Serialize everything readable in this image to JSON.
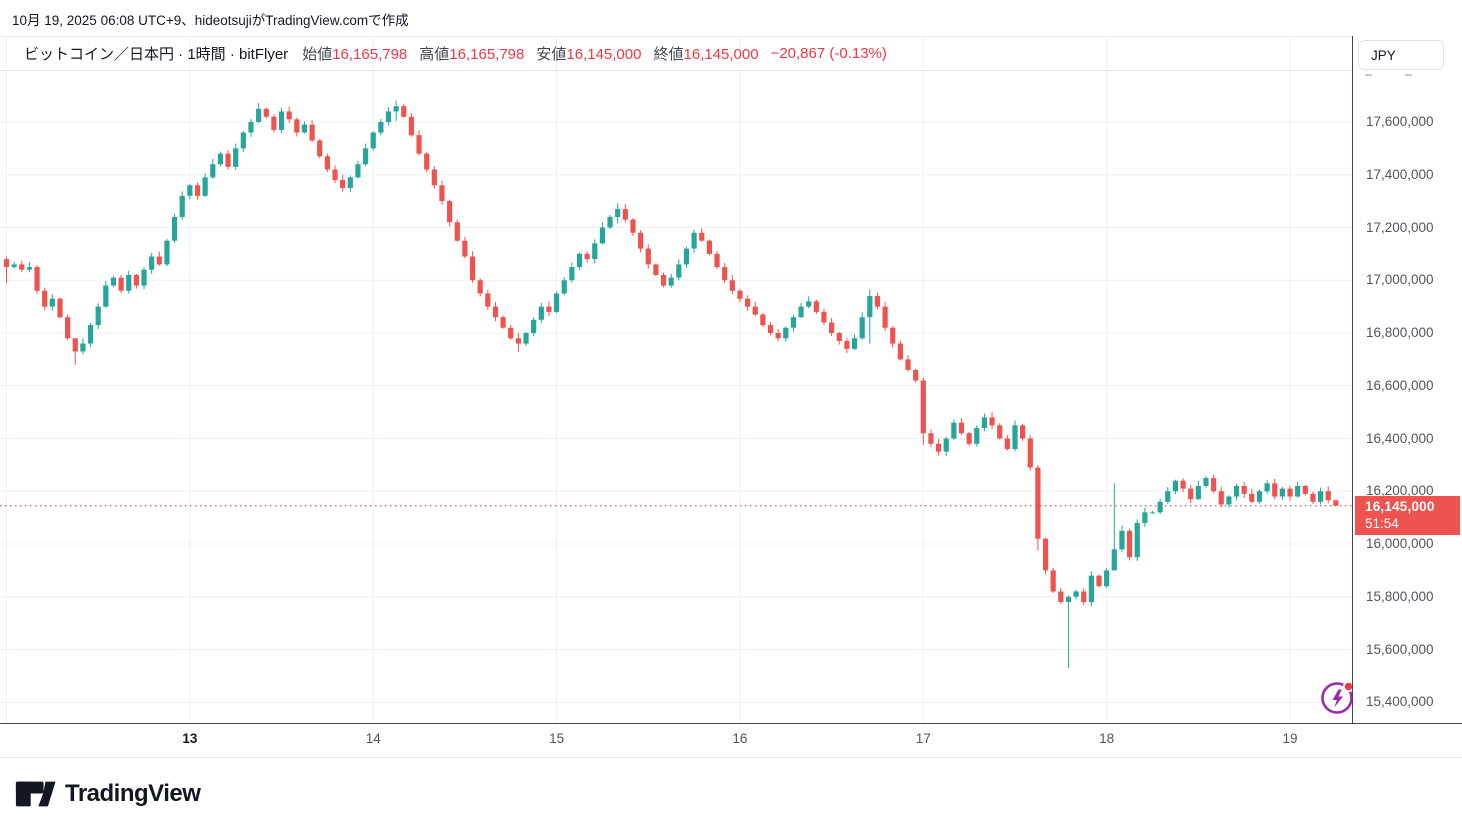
{
  "header": {
    "created_line": "10月 19, 2025 06:08 UTC+9、hideotsujiがTradingView.comで作成"
  },
  "legend": {
    "symbol": "ビットコイン／日本円",
    "interval": "1時間",
    "exchange": "bitFlyer",
    "separator": " · ",
    "fields": [
      {
        "label": "始値",
        "value": "16,165,798"
      },
      {
        "label": "高値",
        "value": "16,165,798"
      },
      {
        "label": "安値",
        "value": "16,145,000"
      },
      {
        "label": "終値",
        "value": "16,145,000"
      }
    ],
    "change": "−20,867 (-0.13%)"
  },
  "price_axis": {
    "currency_label": "JPY",
    "levels_k": [
      17600,
      17400,
      17200,
      17000,
      16800,
      16600,
      16400,
      16200,
      16000,
      15800,
      15600,
      15400
    ],
    "last_price_label": "16,145,000",
    "countdown": "51:54"
  },
  "time_axis": {
    "grid_indices": [
      0,
      24,
      48,
      72,
      96,
      120,
      144,
      168
    ],
    "ticks": [
      {
        "label": "13",
        "index": 24,
        "bold": true
      },
      {
        "label": "14",
        "index": 48,
        "bold": false
      },
      {
        "label": "15",
        "index": 72,
        "bold": false
      },
      {
        "label": "16",
        "index": 96,
        "bold": false
      },
      {
        "label": "17",
        "index": 120,
        "bold": false
      },
      {
        "label": "18",
        "index": 144,
        "bold": false
      },
      {
        "label": "19",
        "index": 168,
        "bold": false
      }
    ]
  },
  "chart_data": {
    "type": "candlestick",
    "title": "ビットコイン／日本円 · 1時間 · bitFlyer",
    "symbol": "BTC/JPY",
    "exchange": "bitFlyer",
    "interval": "1h",
    "start_time": "2025-10-12 00:00 UTC+9",
    "end_time": "2025-10-19 06:00 UTC+9",
    "interval_hours": 1,
    "ohlc_current": {
      "open": 16165798,
      "high": 16165798,
      "low": 16145000,
      "close": 16145000
    },
    "change_abs": -20867,
    "change_pct": -0.13,
    "last_price": 16145000,
    "ylim": [
      15320000,
      17800000
    ],
    "grid": true,
    "unit_note": "closes_k values are thousands of JPY; opens chain from previous close",
    "first_open_k": 17080,
    "closes_k": [
      17050,
      17060,
      17040,
      17050,
      16960,
      16900,
      16930,
      16860,
      16780,
      16730,
      16760,
      16830,
      16900,
      16980,
      17010,
      16960,
      17020,
      16980,
      17040,
      17090,
      17060,
      17150,
      17240,
      17320,
      17360,
      17320,
      17390,
      17440,
      17480,
      17430,
      17500,
      17560,
      17600,
      17650,
      17620,
      17570,
      17640,
      17610,
      17560,
      17590,
      17530,
      17470,
      17420,
      17380,
      17350,
      17390,
      17440,
      17500,
      17560,
      17600,
      17640,
      17660,
      17620,
      17550,
      17480,
      17420,
      17360,
      17300,
      17220,
      17150,
      17090,
      17000,
      16950,
      16900,
      16860,
      16820,
      16780,
      16760,
      16800,
      16850,
      16900,
      16880,
      16950,
      17000,
      17050,
      17100,
      17080,
      17140,
      17200,
      17240,
      17270,
      17230,
      17180,
      17120,
      17060,
      17020,
      16980,
      17010,
      17060,
      17120,
      17180,
      17150,
      17100,
      17050,
      17000,
      16960,
      16930,
      16900,
      16870,
      16830,
      16800,
      16780,
      16820,
      16860,
      16900,
      16920,
      16880,
      16840,
      16800,
      16770,
      16740,
      16780,
      16860,
      16940,
      16900,
      16820,
      16760,
      16700,
      16660,
      16620,
      16420,
      16380,
      16350,
      16400,
      16460,
      16420,
      16380,
      16440,
      16480,
      16450,
      16400,
      16360,
      16450,
      16400,
      16290,
      16020,
      15900,
      15820,
      15780,
      15800,
      15820,
      15780,
      15880,
      15840,
      15900,
      15980,
      16050,
      15950,
      16080,
      16120,
      16120,
      16160,
      16200,
      16240,
      16210,
      16170,
      16220,
      16250,
      16200,
      16150,
      16180,
      16220,
      16190,
      16160,
      16200,
      16230,
      16180,
      16210,
      16180,
      16220,
      16190,
      16160,
      16200,
      16165.798,
      16145
    ],
    "wick_overrides_k": {
      "0": [
        17090,
        16990
      ],
      "9": [
        16760,
        16680
      ],
      "33": [
        17672,
        17595
      ],
      "51": [
        17682,
        17604
      ],
      "67": [
        16800,
        16728
      ],
      "80": [
        17292,
        17215
      ],
      "113": [
        16965,
        16760
      ],
      "120": [
        16630,
        16375
      ],
      "135": [
        16300,
        15975
      ],
      "139": [
        15805,
        15530
      ],
      "145": [
        16230,
        15940
      ],
      "174": [
        16165.798,
        16145
      ]
    }
  },
  "colors": {
    "up": "#26a69a",
    "down": "#ef5350",
    "last_price_line": "#ef5350",
    "badge_bg": "#ef5350",
    "grid": "#edf0f4",
    "axis_border": "#434651",
    "text_dark": "#131722",
    "text_axis": "#51555e",
    "boost_purple": "#9c27b0",
    "notification_red": "#f23645"
  },
  "footer": {
    "brand": "TradingView"
  }
}
